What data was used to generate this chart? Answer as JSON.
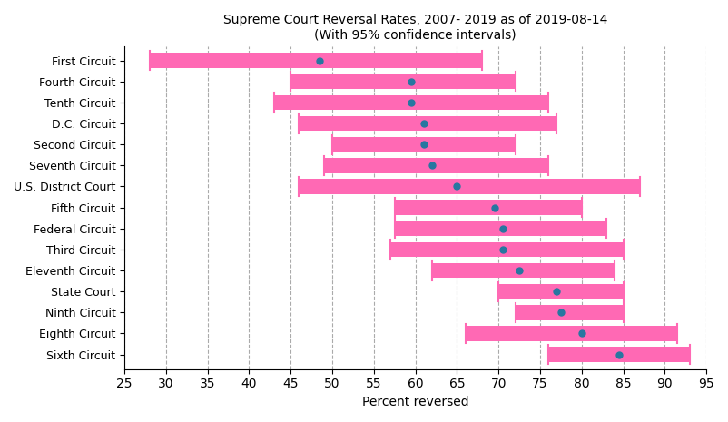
{
  "title_line1": "Supreme Court Reversal Rates, 2007- 2019 as of 2019-08-14",
  "title_line2": "(With 95% confidence intervals)",
  "xlabel": "Percent reversed",
  "circuits": [
    "First Circuit",
    "Fourth Circuit",
    "Tenth Circuit",
    "D.C. Circuit",
    "Second Circuit",
    "Seventh Circuit",
    "U.S. District Court",
    "Fifth Circuit",
    "Federal Circuit",
    "Third Circuit",
    "Eleventh Circuit",
    "State Court",
    "Ninth Circuit",
    "Eighth Circuit",
    "Sixth Circuit"
  ],
  "means": [
    48.5,
    59.5,
    59.5,
    61.0,
    61.0,
    62.0,
    65.0,
    69.5,
    70.5,
    70.5,
    72.5,
    77.0,
    77.5,
    80.0,
    84.5
  ],
  "ci_low": [
    28.0,
    45.0,
    43.0,
    46.0,
    50.0,
    49.0,
    46.0,
    57.5,
    57.5,
    57.0,
    62.0,
    70.0,
    72.0,
    66.0,
    76.0
  ],
  "ci_high": [
    68.0,
    72.0,
    76.0,
    77.0,
    72.0,
    76.0,
    87.0,
    80.0,
    83.0,
    85.0,
    84.0,
    85.0,
    85.0,
    91.5,
    93.0
  ],
  "bar_color": "#FF69B4",
  "dot_color": "#2777A0",
  "bar_height": 0.72,
  "cap_extra": 0.1,
  "xlim": [
    25,
    95
  ],
  "xticks": [
    25,
    30,
    35,
    40,
    45,
    50,
    55,
    60,
    65,
    70,
    75,
    80,
    85,
    90,
    95
  ],
  "grid_color": "#aaaaaa",
  "fig_width": 8.02,
  "fig_height": 4.65,
  "dpi": 100
}
